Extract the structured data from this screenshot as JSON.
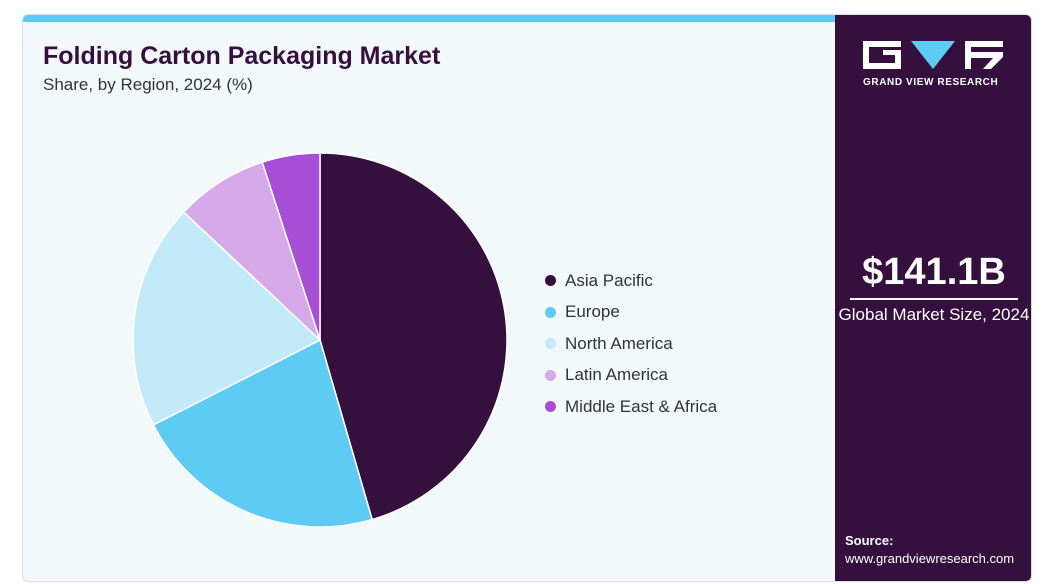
{
  "header": {
    "title": "Folding Carton Packaging Market",
    "subtitle": "Share, by Region, 2024 (%)"
  },
  "brand": {
    "name": "GRAND VIEW RESEARCH",
    "primary_color": "#35103f",
    "accent_color": "#5ecbf5"
  },
  "sidebar": {
    "market_size": "$141.1B",
    "market_size_label": "Global Market Size, 2024",
    "source_label": "Source:",
    "source_url": "www.grandviewresearch.com"
  },
  "chart_data": {
    "type": "pie",
    "title": "Folding Carton Packaging Market",
    "subtitle": "Share, by Region, 2024 (%)",
    "legend_position": "right",
    "categories": [
      "Asia Pacific",
      "Europe",
      "North America",
      "Latin America",
      "Middle East & Africa"
    ],
    "values": [
      45.5,
      22.0,
      19.5,
      8.0,
      5.0
    ],
    "colors": [
      "#35103f",
      "#5ecbf5",
      "#c2eaf9",
      "#d6a9ea",
      "#a64fd6"
    ]
  }
}
